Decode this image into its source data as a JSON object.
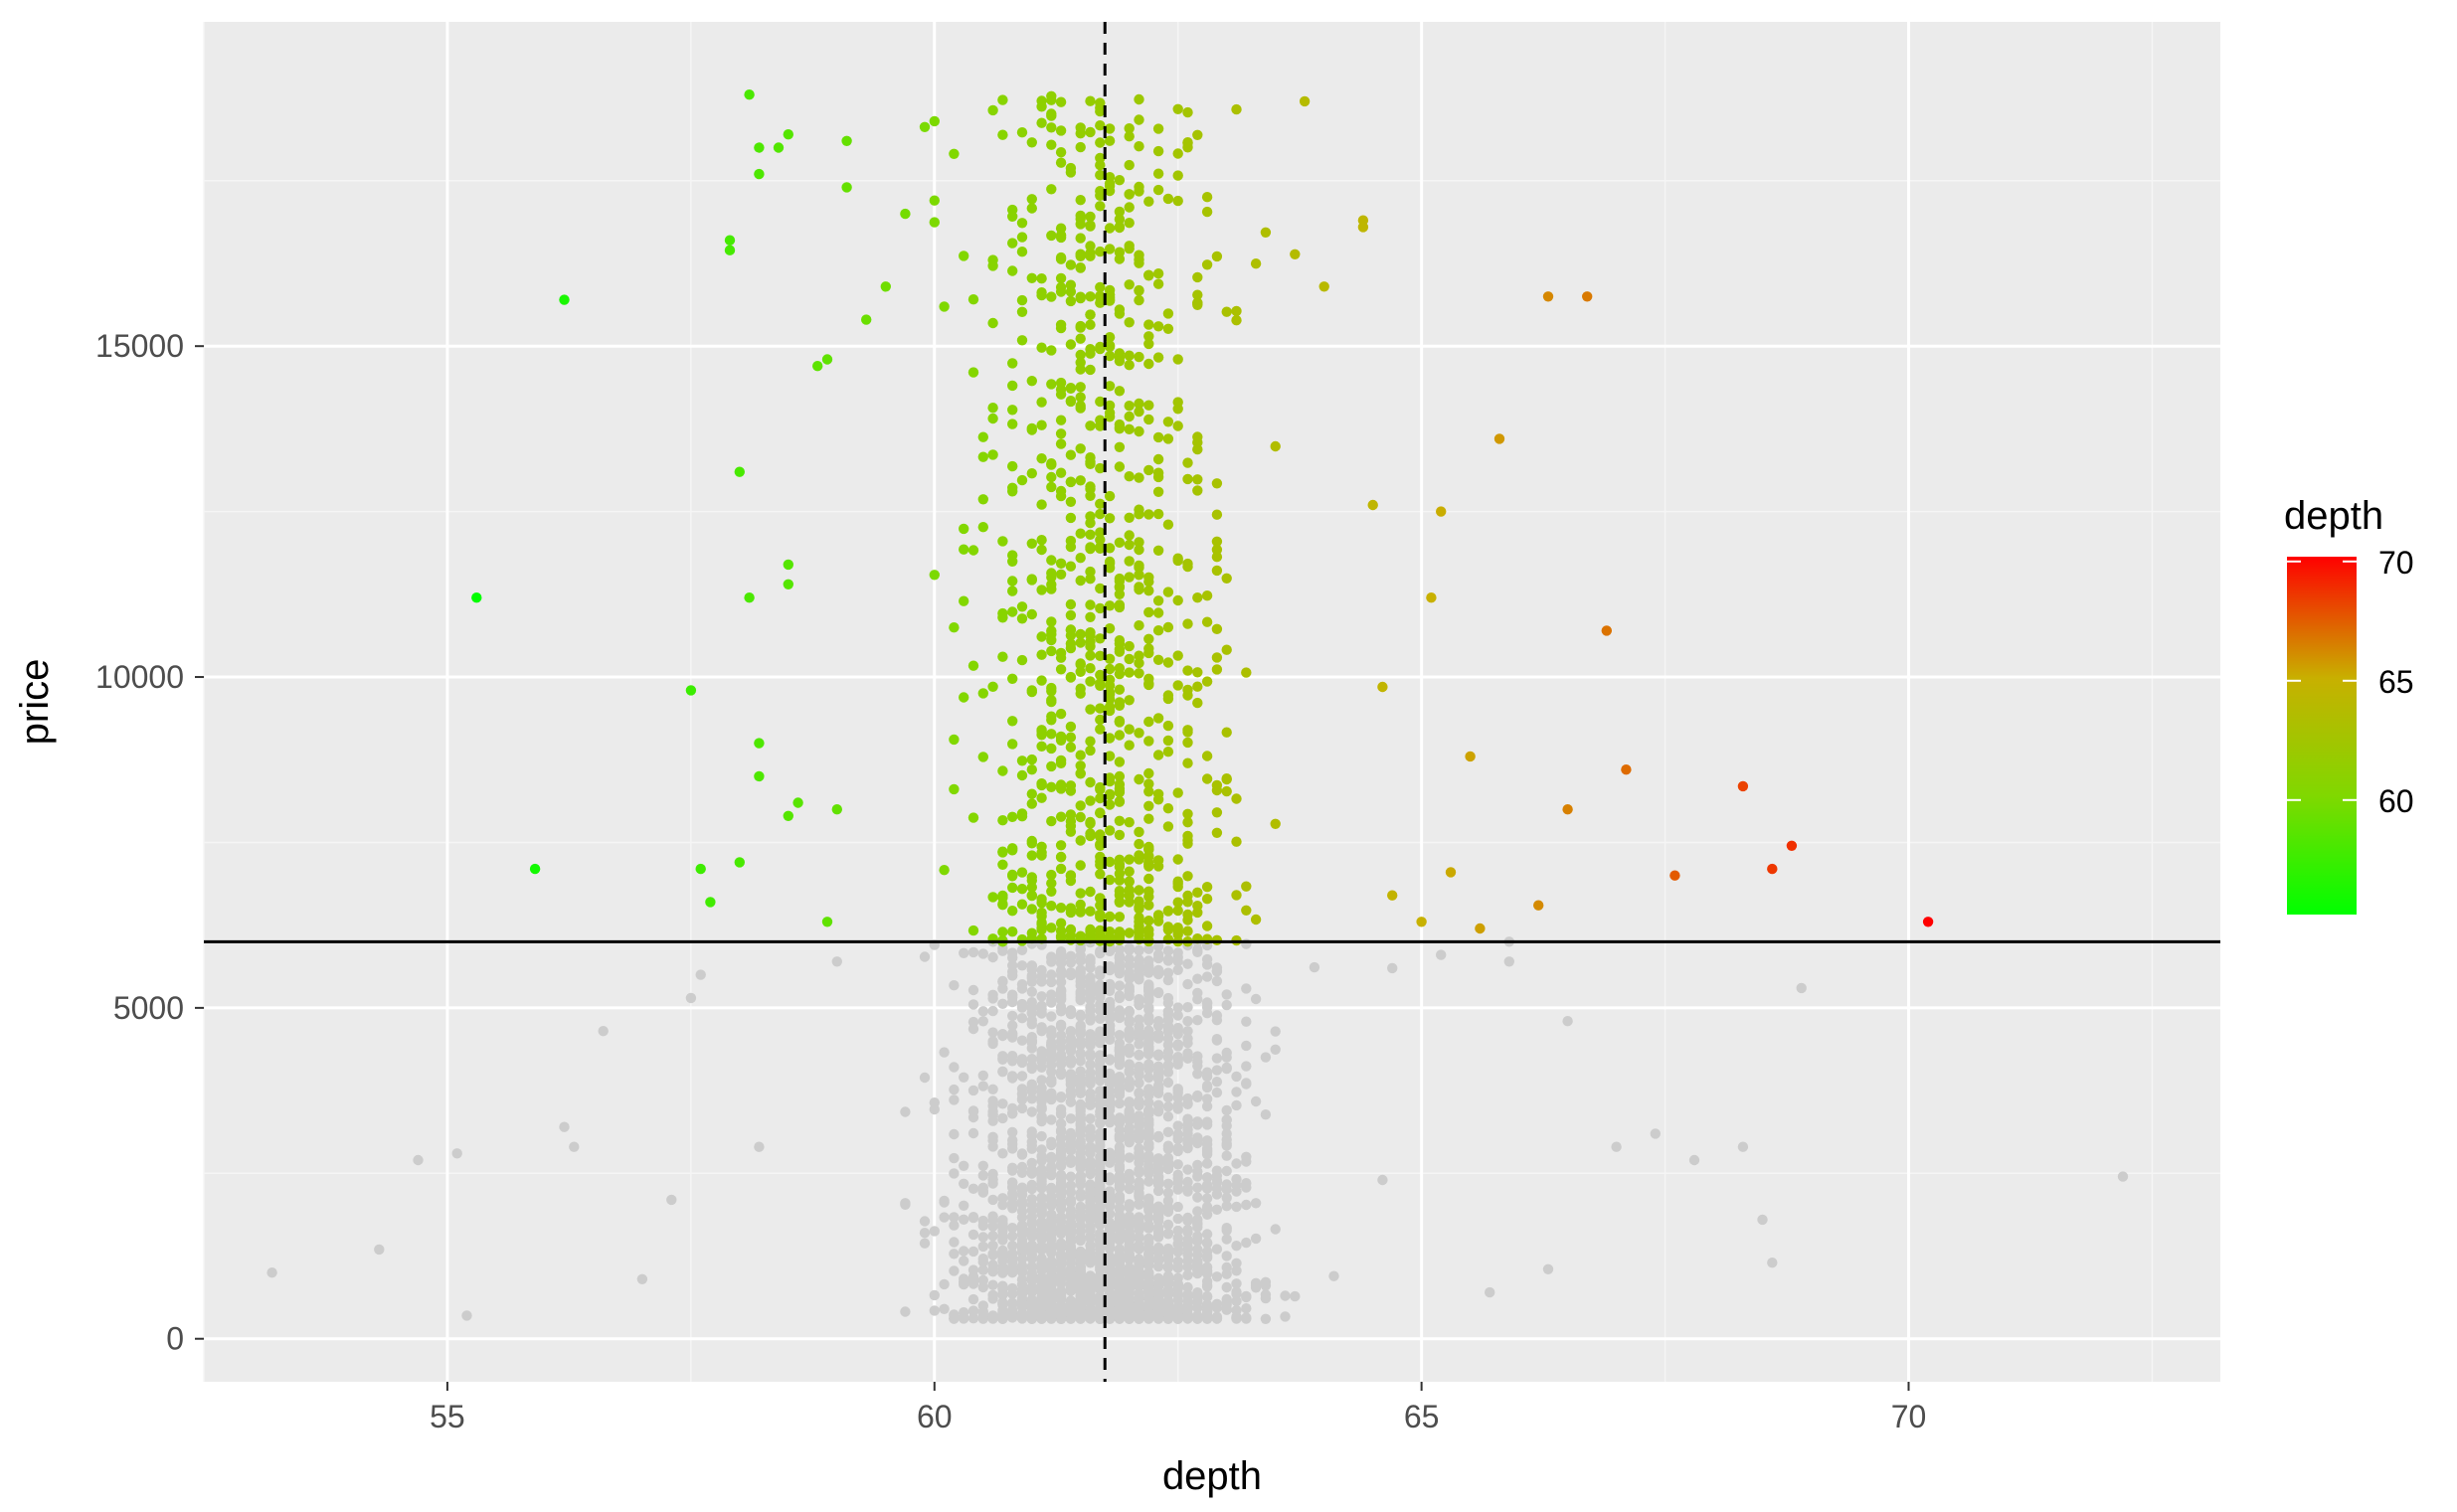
{
  "chart_data": {
    "type": "scatter",
    "title": "",
    "xlabel": "depth",
    "ylabel": "price",
    "xlim": [
      52.5,
      73.2
    ],
    "ylim": [
      -650,
      19900
    ],
    "x_ticks": [
      55,
      60,
      65,
      70
    ],
    "y_ticks": [
      0,
      5000,
      10000,
      15000
    ],
    "x_tick_labels": [
      "55",
      "60",
      "65",
      "70"
    ],
    "y_tick_labels": [
      "0",
      "5000",
      "10000",
      "15000"
    ],
    "grid": true,
    "background": "#ebebeb",
    "threshold_price": 6000,
    "mean_depth_line": 61.75,
    "highlight_rule": "price > 6000 colored by depth; others grey",
    "grey_color": "#cccccc",
    "legend": {
      "title": "depth",
      "position": "right",
      "labels": [
        "60",
        "65",
        "70"
      ],
      "label_values": [
        60,
        65,
        70
      ],
      "range": [
        55.2,
        70.2
      ],
      "low_color": "#00ff00",
      "high_color": "#ff0000"
    },
    "series": [
      {
        "group": "above-threshold",
        "points": [
          [
            55.3,
            11200
          ],
          [
            55.9,
            7100
          ],
          [
            56.2,
            15700
          ],
          [
            57.5,
            9800
          ],
          [
            57.6,
            7100
          ],
          [
            57.7,
            6600
          ],
          [
            57.9,
            16600
          ],
          [
            57.9,
            16450
          ],
          [
            58.0,
            13100
          ],
          [
            58.0,
            7200
          ],
          [
            58.1,
            18800
          ],
          [
            58.1,
            11200
          ],
          [
            58.2,
            18000
          ],
          [
            58.2,
            17600
          ],
          [
            58.2,
            9000
          ],
          [
            58.2,
            8500
          ],
          [
            58.4,
            18000
          ],
          [
            58.5,
            18200
          ],
          [
            58.5,
            11700
          ],
          [
            58.5,
            11400
          ],
          [
            58.5,
            7900
          ],
          [
            58.6,
            8100
          ],
          [
            58.8,
            14700
          ],
          [
            58.9,
            14800
          ],
          [
            58.9,
            6300
          ],
          [
            59.0,
            8000
          ],
          [
            59.1,
            18100
          ],
          [
            59.1,
            17400
          ],
          [
            59.3,
            15400
          ],
          [
            59.5,
            15900
          ],
          [
            59.7,
            17000
          ],
          [
            60.0,
            17200
          ],
          [
            60.0,
            18400
          ],
          [
            60.6,
            16300
          ],
          [
            66.3,
            15750
          ],
          [
            66.7,
            15750
          ],
          [
            65.8,
            13600
          ],
          [
            64.5,
            12600
          ],
          [
            65.2,
            12500
          ],
          [
            65.1,
            11200
          ],
          [
            66.9,
            10700
          ],
          [
            64.6,
            9850
          ],
          [
            65.5,
            8800
          ],
          [
            67.1,
            8600
          ],
          [
            68.3,
            8350
          ],
          [
            66.5,
            8000
          ],
          [
            68.8,
            7450
          ],
          [
            68.6,
            7100
          ],
          [
            67.6,
            7000
          ],
          [
            65.3,
            7050
          ],
          [
            66.2,
            6550
          ],
          [
            70.2,
            6300
          ],
          [
            65.0,
            6300
          ],
          [
            65.6,
            6200
          ],
          [
            64.7,
            6700
          ],
          [
            65.9,
            6000
          ],
          [
            63.8,
            18700
          ],
          [
            64.4,
            16900
          ],
          [
            64.4,
            16800
          ],
          [
            64.0,
            15900
          ]
        ]
      },
      {
        "group": "below-threshold",
        "points": [
          [
            53.2,
            1000
          ],
          [
            54.3,
            1350
          ],
          [
            54.7,
            2700
          ],
          [
            55.1,
            2800
          ],
          [
            55.2,
            350
          ],
          [
            56.2,
            3200
          ],
          [
            56.3,
            2900
          ],
          [
            56.6,
            4650
          ],
          [
            57.0,
            900
          ],
          [
            57.3,
            2100
          ],
          [
            57.5,
            5150
          ],
          [
            57.6,
            5500
          ],
          [
            58.2,
            2900
          ],
          [
            59.0,
            5700
          ],
          [
            60.0,
            5950
          ],
          [
            64.7,
            5600
          ],
          [
            65.2,
            5800
          ],
          [
            65.9,
            5700
          ],
          [
            66.5,
            4800
          ],
          [
            67.0,
            2900
          ],
          [
            67.4,
            3100
          ],
          [
            67.8,
            2700
          ],
          [
            68.3,
            2900
          ],
          [
            68.5,
            1800
          ],
          [
            68.6,
            1150
          ],
          [
            68.9,
            5300
          ],
          [
            72.2,
            2450
          ],
          [
            65.7,
            700
          ],
          [
            66.3,
            1050
          ],
          [
            64.6,
            2400
          ]
        ]
      }
    ]
  }
}
